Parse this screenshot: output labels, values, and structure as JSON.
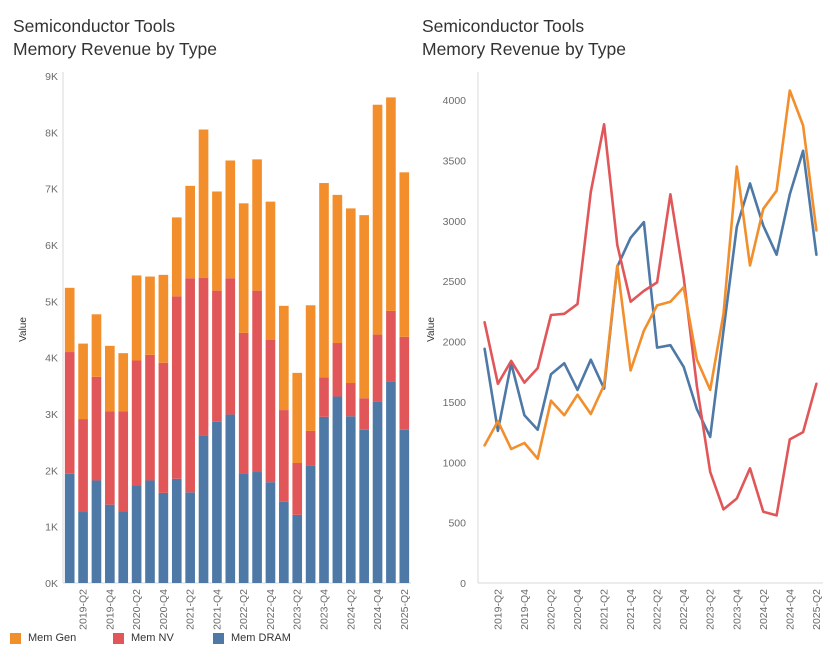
{
  "left_chart": {
    "title_line1": "Semiconductor Tools",
    "title_line2": "Memory Revenue by Type"
  },
  "right_chart": {
    "title_line1": "Semiconductor Tools",
    "title_line2": "Memory Revenue by Type"
  },
  "legend": [
    {
      "label": "Mem Gen",
      "color": "#f28e2b"
    },
    {
      "label": "Mem NV",
      "color": "#e15759"
    },
    {
      "label": "Mem DRAM",
      "color": "#4e79a7"
    }
  ],
  "chart_data": [
    {
      "type": "bar",
      "stacked": true,
      "ylabel": "Value",
      "ylim": [
        0,
        9000
      ],
      "yticks": [
        0,
        1000,
        2000,
        3000,
        4000,
        5000,
        6000,
        7000,
        8000,
        9000
      ],
      "ytick_labels": [
        "0K",
        "1K",
        "2K",
        "3K",
        "4K",
        "5K",
        "6K",
        "7K",
        "8K",
        "9K"
      ],
      "categories": [
        "2019-Q1",
        "2019-Q2",
        "2019-Q3",
        "2019-Q4",
        "2020-Q1",
        "2020-Q2",
        "2020-Q3",
        "2020-Q4",
        "2021-Q1",
        "2021-Q2",
        "2021-Q3",
        "2021-Q4",
        "2022-Q1",
        "2022-Q2",
        "2022-Q3",
        "2022-Q4",
        "2023-Q1",
        "2023-Q2",
        "2023-Q3",
        "2023-Q4",
        "2024-Q1",
        "2024-Q2",
        "2024-Q3",
        "2024-Q4",
        "2025-Q1",
        "2025-Q2"
      ],
      "shown_tick_labels": [
        "2019-Q2",
        "2019-Q4",
        "2020-Q2",
        "2020-Q4",
        "2021-Q2",
        "2021-Q4",
        "2022-Q2",
        "2022-Q4",
        "2023-Q2",
        "2023-Q4",
        "2024-Q2",
        "2024-Q4",
        "2025-Q2"
      ],
      "series": [
        {
          "name": "Mem DRAM",
          "color": "#4e79a7",
          "values": [
            1940,
            1260,
            1820,
            1390,
            1270,
            1730,
            1820,
            1600,
            1850,
            1610,
            2620,
            2860,
            2990,
            1950,
            1970,
            1790,
            1440,
            1210,
            2090,
            2950,
            3310,
            2960,
            2720,
            3220,
            3580,
            2720
          ]
        },
        {
          "name": "Mem NV",
          "color": "#e15759",
          "values": [
            2160,
            1650,
            1840,
            1660,
            1780,
            2220,
            2230,
            2310,
            3240,
            3800,
            2800,
            2330,
            2420,
            2490,
            3220,
            2530,
            1630,
            920,
            610,
            700,
            950,
            590,
            560,
            1190,
            1250,
            1650
          ]
        },
        {
          "name": "Mem Gen",
          "color": "#f28e2b",
          "values": [
            1140,
            1340,
            1110,
            1160,
            1030,
            1510,
            1390,
            1560,
            1400,
            1640,
            2630,
            1760,
            2090,
            2300,
            2330,
            2450,
            1850,
            1600,
            2230,
            3450,
            2630,
            3100,
            3250,
            4080,
            3790,
            2920
          ]
        }
      ]
    },
    {
      "type": "line",
      "ylabel": "Value",
      "ylim": [
        0,
        4200
      ],
      "yticks": [
        0,
        500,
        1000,
        1500,
        2000,
        2500,
        3000,
        3500,
        4000
      ],
      "ytick_labels": [
        "0",
        "500",
        "1000",
        "1500",
        "2000",
        "2500",
        "3000",
        "3500",
        "4000"
      ],
      "categories": [
        "2019-Q1",
        "2019-Q2",
        "2019-Q3",
        "2019-Q4",
        "2020-Q1",
        "2020-Q2",
        "2020-Q3",
        "2020-Q4",
        "2021-Q1",
        "2021-Q2",
        "2021-Q3",
        "2021-Q4",
        "2022-Q1",
        "2022-Q2",
        "2022-Q3",
        "2022-Q4",
        "2023-Q1",
        "2023-Q2",
        "2023-Q3",
        "2023-Q4",
        "2024-Q1",
        "2024-Q2",
        "2024-Q3",
        "2024-Q4",
        "2025-Q1",
        "2025-Q2"
      ],
      "shown_tick_labels": [
        "2019-Q2",
        "2019-Q4",
        "2020-Q2",
        "2020-Q4",
        "2021-Q2",
        "2021-Q4",
        "2022-Q2",
        "2022-Q4",
        "2023-Q2",
        "2023-Q4",
        "2024-Q2",
        "2024-Q4",
        "2025-Q2"
      ],
      "series": [
        {
          "name": "Mem DRAM",
          "color": "#4e79a7",
          "values": [
            1940,
            1260,
            1820,
            1390,
            1270,
            1730,
            1820,
            1600,
            1850,
            1610,
            2620,
            2860,
            2990,
            1950,
            1970,
            1790,
            1440,
            1210,
            2090,
            2950,
            3310,
            2960,
            2720,
            3220,
            3580,
            2720
          ]
        },
        {
          "name": "Mem NV",
          "color": "#e15759",
          "values": [
            2160,
            1650,
            1840,
            1660,
            1780,
            2220,
            2230,
            2310,
            3240,
            3800,
            2800,
            2330,
            2420,
            2490,
            3220,
            2530,
            1630,
            920,
            610,
            700,
            950,
            590,
            560,
            1190,
            1250,
            1650
          ]
        },
        {
          "name": "Mem Gen",
          "color": "#f28e2b",
          "values": [
            1140,
            1340,
            1110,
            1160,
            1030,
            1510,
            1390,
            1560,
            1400,
            1640,
            2630,
            1760,
            2090,
            2300,
            2330,
            2450,
            1850,
            1600,
            2230,
            3450,
            2630,
            3100,
            3250,
            4080,
            3790,
            2920
          ]
        }
      ]
    }
  ]
}
